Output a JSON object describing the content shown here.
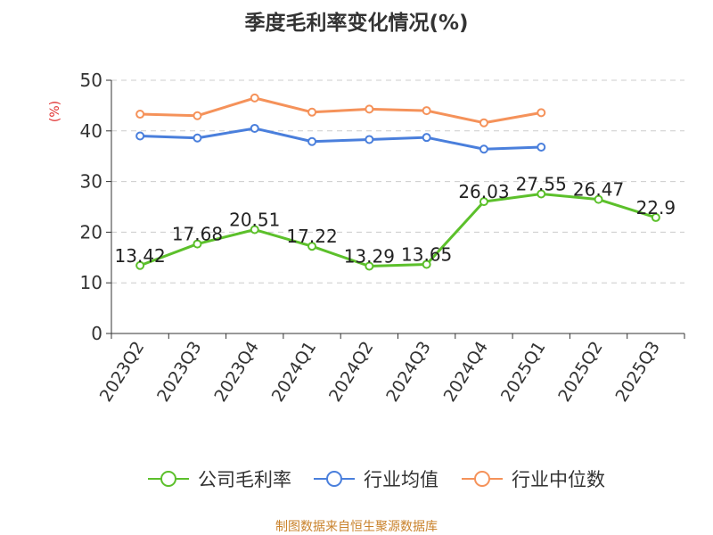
{
  "chart_data": {
    "type": "line",
    "title": "季度毛利率变化情况(%)",
    "ylabel": "(%)",
    "xlabel": "",
    "ylim": [
      0,
      50
    ],
    "yticks": [
      0,
      10,
      20,
      30,
      40,
      50
    ],
    "grid": true,
    "legend_position": "bottom",
    "categories": [
      "2023Q2",
      "2023Q3",
      "2023Q4",
      "2024Q1",
      "2024Q2",
      "2024Q3",
      "2024Q4",
      "2025Q1",
      "2025Q2",
      "2025Q3"
    ],
    "series": [
      {
        "name": "公司毛利率",
        "color": "#5cc02b",
        "labeled": true,
        "values": [
          13.42,
          17.68,
          20.51,
          17.22,
          13.29,
          13.65,
          26.03,
          27.55,
          26.47,
          22.9
        ]
      },
      {
        "name": "行业均值",
        "color": "#4a7fdc",
        "labeled": false,
        "values": [
          39.0,
          38.6,
          40.5,
          37.9,
          38.3,
          38.7,
          36.4,
          36.8,
          null,
          null
        ]
      },
      {
        "name": "行业中位数",
        "color": "#f5925a",
        "labeled": false,
        "values": [
          43.3,
          43.0,
          46.5,
          43.7,
          44.3,
          44.0,
          41.6,
          43.6,
          null,
          null
        ]
      }
    ]
  },
  "source": "制图数据来自恒生聚源数据库"
}
